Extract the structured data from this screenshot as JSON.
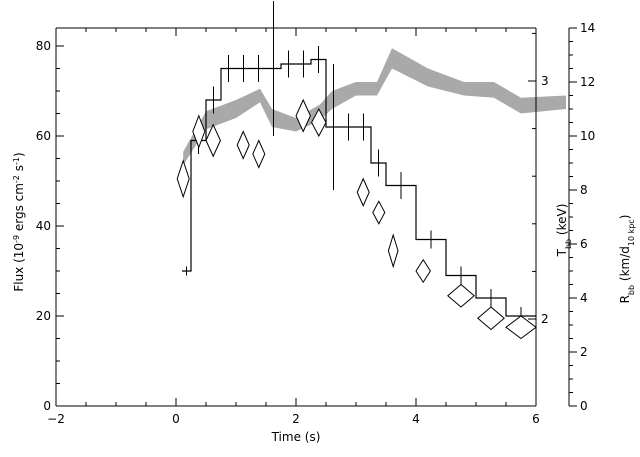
{
  "chart_data": {
    "type": "line",
    "xlabel": "Time (s)",
    "ylabel_left": "Flux (10^-9 ergs cm^-2 s^-1)",
    "ylabel_left_parts": {
      "base": "Flux (10",
      "exp1": "-9",
      "mid": " ergs cm",
      "exp2": "-2",
      "mid2": " s",
      "exp3": "-1",
      "end": ")"
    },
    "ylabel_right_temp_parts": {
      "base": "T",
      "sub": "bb",
      "end": " (keV)"
    },
    "ylabel_right_radius_parts": {
      "base": "R",
      "sub": "bb",
      "mid": " (km/d",
      "sub2": "10 kpc",
      "end": ")"
    },
    "xlim": [
      -2,
      6
    ],
    "xticks": [
      -2,
      0,
      2,
      4,
      6
    ],
    "ylim_flux": [
      0,
      84
    ],
    "yticks_flux": [
      0,
      20,
      40,
      60,
      80
    ],
    "temp_axis": {
      "ticks": [
        2,
        3
      ],
      "labels": [
        "2",
        "3"
      ]
    },
    "ylim_radius": [
      0,
      14
    ],
    "yticks_radius": [
      0,
      2,
      4,
      6,
      8,
      10,
      12,
      14
    ],
    "series": [
      {
        "kind": "flux-step",
        "bins": [
          {
            "x0": 0.1,
            "x1": 0.25,
            "y": 30,
            "err": 1
          },
          {
            "x0": 0.25,
            "x1": 0.5,
            "y": 59,
            "err": 3
          },
          {
            "x0": 0.5,
            "x1": 0.75,
            "y": 68,
            "err": 3
          },
          {
            "x0": 0.75,
            "x1": 1.0,
            "y": 75,
            "err": 3
          },
          {
            "x0": 1.0,
            "x1": 1.25,
            "y": 75,
            "err": 3
          },
          {
            "x0": 1.25,
            "x1": 1.5,
            "y": 75,
            "err": 3
          },
          {
            "x0": 1.5,
            "x1": 1.75,
            "y": 75,
            "err": 15
          },
          {
            "x0": 1.75,
            "x1": 2.0,
            "y": 76,
            "err": 3
          },
          {
            "x0": 2.0,
            "x1": 2.25,
            "y": 76,
            "err": 3
          },
          {
            "x0": 2.25,
            "x1": 2.5,
            "y": 77,
            "err": 3
          },
          {
            "x0": 2.5,
            "x1": 2.75,
            "y": 62,
            "err": 14
          },
          {
            "x0": 2.75,
            "x1": 3.0,
            "y": 62,
            "err": 3
          },
          {
            "x0": 3.0,
            "x1": 3.25,
            "y": 62,
            "err": 3
          },
          {
            "x0": 3.25,
            "x1": 3.5,
            "y": 54,
            "err": 3
          },
          {
            "x0": 3.5,
            "x1": 4.0,
            "y": 49,
            "err": 3
          },
          {
            "x0": 4.0,
            "x1": 4.5,
            "y": 37,
            "err": 2
          },
          {
            "x0": 4.5,
            "x1": 5.0,
            "y": 29,
            "err": 2
          },
          {
            "x0": 5.0,
            "x1": 5.5,
            "y": 24,
            "err": 2
          },
          {
            "x0": 5.5,
            "x1": 6.0,
            "y": 20,
            "err": 2
          }
        ]
      },
      {
        "kind": "temperature-diamonds",
        "points": [
          {
            "x": 0.12,
            "y": 50.5,
            "w": 0.1,
            "h": 4
          },
          {
            "x": 0.38,
            "y": 61,
            "w": 0.1,
            "h": 3.5
          },
          {
            "x": 0.62,
            "y": 59,
            "w": 0.12,
            "h": 3.5
          },
          {
            "x": 1.12,
            "y": 58,
            "w": 0.1,
            "h": 3
          },
          {
            "x": 1.38,
            "y": 56,
            "w": 0.1,
            "h": 3
          },
          {
            "x": 2.12,
            "y": 64.5,
            "w": 0.12,
            "h": 3.5
          },
          {
            "x": 2.38,
            "y": 63,
            "w": 0.12,
            "h": 3
          },
          {
            "x": 3.12,
            "y": 47.5,
            "w": 0.1,
            "h": 3
          },
          {
            "x": 3.38,
            "y": 43,
            "w": 0.1,
            "h": 2.5
          },
          {
            "x": 3.62,
            "y": 34.5,
            "w": 0.08,
            "h": 3.5
          },
          {
            "x": 4.12,
            "y": 30,
            "w": 0.12,
            "h": 2.5
          },
          {
            "x": 4.75,
            "y": 24.5,
            "w": 0.22,
            "h": 2.5
          },
          {
            "x": 5.25,
            "y": 19.5,
            "w": 0.22,
            "h": 2.5
          },
          {
            "x": 5.75,
            "y": 17.5,
            "w": 0.25,
            "h": 2.5
          }
        ]
      },
      {
        "kind": "radius-band",
        "points": [
          {
            "x": 0.12,
            "lo": 53.5,
            "hi": 56.5
          },
          {
            "x": 0.5,
            "lo": 61.5,
            "hi": 65.5
          },
          {
            "x": 1.0,
            "lo": 64,
            "hi": 68
          },
          {
            "x": 1.4,
            "lo": 67.5,
            "hi": 70.5
          },
          {
            "x": 1.6,
            "lo": 62,
            "hi": 66
          },
          {
            "x": 2.0,
            "lo": 61,
            "hi": 64
          },
          {
            "x": 2.4,
            "lo": 63.5,
            "hi": 67
          },
          {
            "x": 2.6,
            "lo": 66,
            "hi": 70
          },
          {
            "x": 3.0,
            "lo": 69,
            "hi": 72
          },
          {
            "x": 3.35,
            "lo": 69,
            "hi": 72
          },
          {
            "x": 3.6,
            "lo": 75,
            "hi": 79.5
          },
          {
            "x": 4.2,
            "lo": 71,
            "hi": 75
          },
          {
            "x": 4.8,
            "lo": 69,
            "hi": 72
          },
          {
            "x": 5.3,
            "lo": 68.5,
            "hi": 72
          },
          {
            "x": 5.75,
            "lo": 65,
            "hi": 68.5
          },
          {
            "x": 6.5,
            "lo": 66,
            "hi": 69
          }
        ]
      }
    ],
    "grid": false,
    "legend": "none"
  }
}
